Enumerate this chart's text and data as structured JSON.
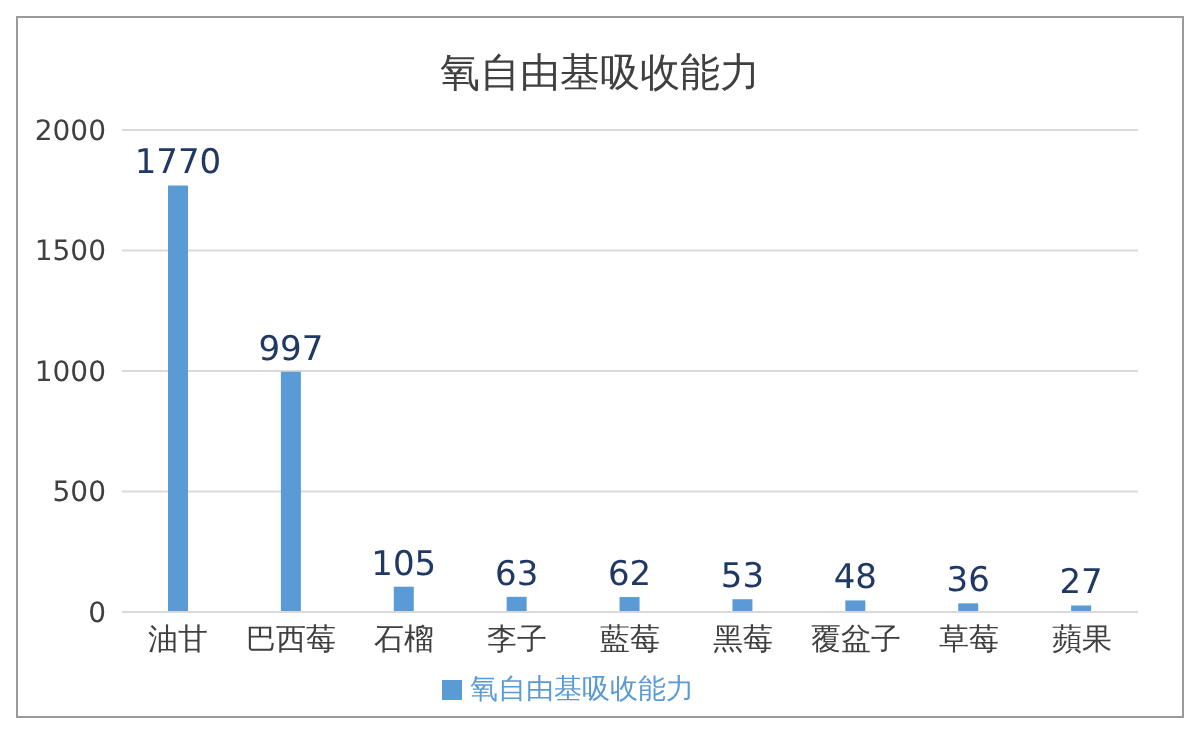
{
  "chart_data": {
    "type": "bar",
    "title": "氧自由基吸收能力",
    "categories": [
      "油甘",
      "巴西莓",
      "石榴",
      "李子",
      "藍莓",
      "黑莓",
      "覆盆子",
      "草莓",
      "蘋果"
    ],
    "series": [
      {
        "name": "氧自由基吸收能力",
        "color": "#5b9bd5",
        "values": [
          1770,
          997,
          105,
          63,
          62,
          53,
          48,
          36,
          27
        ]
      }
    ],
    "ylim": [
      0,
      2000
    ],
    "yticks": [
      0,
      500,
      1000,
      1500,
      2000
    ],
    "grid": "y",
    "legend": "bottom",
    "data_labels": true
  }
}
